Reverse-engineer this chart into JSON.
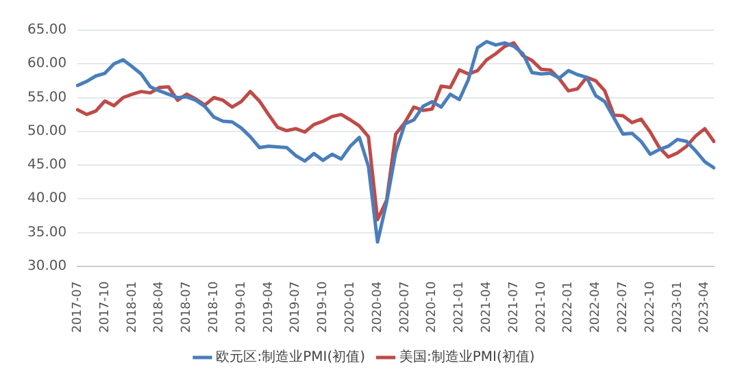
{
  "chart_data": {
    "type": "line",
    "categories": [
      "2017-07",
      null,
      null,
      "2017-10",
      null,
      null,
      "2018-01",
      null,
      null,
      "2018-04",
      null,
      null,
      "2018-07",
      null,
      null,
      "2018-10",
      null,
      null,
      "2019-01",
      null,
      null,
      "2019-04",
      null,
      null,
      "2019-07",
      null,
      null,
      "2019-10",
      null,
      null,
      "2020-01",
      null,
      null,
      "2020-04",
      null,
      null,
      "2020-07",
      null,
      null,
      "2020-10",
      null,
      null,
      "2021-01",
      null,
      null,
      "2021-04",
      null,
      null,
      "2021-07",
      null,
      null,
      "2021-10",
      null,
      null,
      "2022-01",
      null,
      null,
      "2022-04",
      null,
      null,
      "2022-07",
      null,
      null,
      "2022-10",
      null,
      null,
      "2023-01",
      null,
      null,
      "2023-04",
      null
    ],
    "series": [
      {
        "name": "欧元区:制造业PMI(初值)",
        "color": "#4a7ebb",
        "values": [
          56.8,
          57.4,
          58.2,
          58.6,
          60.0,
          60.6,
          59.6,
          58.5,
          56.6,
          56.0,
          55.5,
          55.0,
          55.1,
          54.6,
          53.7,
          52.1,
          51.5,
          51.4,
          50.5,
          49.2,
          47.6,
          47.8,
          47.7,
          47.6,
          46.4,
          45.6,
          46.7,
          45.7,
          46.6,
          45.9,
          47.8,
          49.1,
          44.8,
          33.6,
          39.5,
          46.9,
          51.1,
          51.7,
          53.7,
          54.4,
          53.6,
          55.5,
          54.7,
          57.7,
          62.4,
          63.3,
          62.8,
          63.1,
          62.6,
          61.5,
          58.7,
          58.5,
          58.6,
          57.9,
          59.0,
          58.4,
          58.0,
          55.3,
          54.4,
          52.0,
          49.6,
          49.7,
          48.5,
          46.6,
          47.3,
          47.8,
          48.8,
          48.5,
          47.1,
          45.5,
          44.6
        ]
      },
      {
        "name": "美国:制造业PMI(初值)",
        "color": "#be4b48",
        "values": [
          53.2,
          52.5,
          53.0,
          54.5,
          53.8,
          55.0,
          55.5,
          55.9,
          55.7,
          56.5,
          56.6,
          54.6,
          55.5,
          54.8,
          53.9,
          55.0,
          54.6,
          53.6,
          54.4,
          55.9,
          54.5,
          52.5,
          50.6,
          50.1,
          50.4,
          49.9,
          51.0,
          51.5,
          52.2,
          52.5,
          51.7,
          50.8,
          49.2,
          36.9,
          39.8,
          49.6,
          51.3,
          53.6,
          53.1,
          53.3,
          56.7,
          56.5,
          59.1,
          58.5,
          59.0,
          60.6,
          61.5,
          62.6,
          63.1,
          61.2,
          60.5,
          59.2,
          59.1,
          57.8,
          56.0,
          56.3,
          58.0,
          57.5,
          56.0,
          52.4,
          52.3,
          51.3,
          51.8,
          49.9,
          47.6,
          46.2,
          46.8,
          47.8,
          49.3,
          50.4,
          48.5
        ]
      }
    ],
    "ylim": [
      30,
      65
    ],
    "yticks": [
      {
        "value": 30,
        "label": "30.00"
      },
      {
        "value": 35,
        "label": "35.00"
      },
      {
        "value": 40,
        "label": "40.00"
      },
      {
        "value": 45,
        "label": "45.00"
      },
      {
        "value": 50,
        "label": "50.00"
      },
      {
        "value": 55,
        "label": "55.00"
      },
      {
        "value": 60,
        "label": "60.00"
      },
      {
        "value": 65,
        "label": "65.00"
      }
    ],
    "grid": "y",
    "legend": "bottom",
    "marker": "none",
    "line_style": "solid"
  }
}
